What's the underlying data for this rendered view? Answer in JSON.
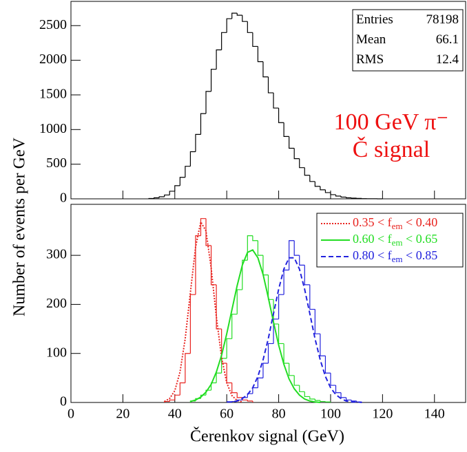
{
  "chart_data": [
    {
      "type": "histogram",
      "xlim": [
        0,
        152
      ],
      "xticks": [
        0,
        20,
        40,
        60,
        80,
        100,
        120,
        140
      ],
      "xticklabels": false,
      "ylim": [
        0,
        2850
      ],
      "yticks": [
        0,
        500,
        1000,
        1500,
        2000,
        2500
      ],
      "series": [
        {
          "type": "histogram",
          "color": "#000000",
          "bins": [
            30,
            32,
            34,
            36,
            38,
            40,
            42,
            44,
            46,
            48,
            50,
            52,
            54,
            56,
            58,
            60,
            62,
            64,
            66,
            68,
            70,
            72,
            74,
            76,
            78,
            80,
            82,
            84,
            86,
            88,
            90,
            92,
            94,
            96,
            98,
            100,
            102,
            104,
            106,
            108,
            110,
            112,
            114,
            116,
            118,
            120
          ],
          "values": [
            5,
            15,
            30,
            55,
            110,
            190,
            310,
            470,
            680,
            930,
            1230,
            1550,
            1870,
            2150,
            2400,
            2600,
            2680,
            2650,
            2560,
            2400,
            2200,
            1980,
            1760,
            1530,
            1310,
            1100,
            900,
            730,
            580,
            450,
            340,
            250,
            180,
            130,
            90,
            60,
            40,
            25,
            15,
            10,
            6,
            3,
            2,
            1,
            0
          ]
        }
      ],
      "stats": [
        {
          "label": "Entries",
          "value": 78198
        },
        {
          "label": "Mean",
          "value": 66.1
        },
        {
          "label": "RMS",
          "value": 12.4
        }
      ],
      "annotations": [
        {
          "text": "100 GeV π⁻",
          "color": "#ee1111"
        },
        {
          "text": "Č signal",
          "color": "#ee1111"
        }
      ]
    },
    {
      "type": "histogram",
      "x_label": "Čerenkov signal (GeV)",
      "y_label": "Number of events per GeV",
      "xlim": [
        0,
        152
      ],
      "xticks": [
        0,
        20,
        40,
        60,
        80,
        100,
        120,
        140
      ],
      "xticklabels": true,
      "ylim": [
        0,
        404
      ],
      "yticks": [
        0,
        100,
        200,
        300
      ],
      "legend": "upper right",
      "series": [
        {
          "type": "histogram",
          "color": "#e8221e",
          "bins": [
            36,
            38,
            40,
            42,
            44,
            46,
            48,
            50,
            52,
            54,
            56,
            58,
            60,
            62,
            64,
            66,
            68,
            70
          ],
          "values": [
            2,
            5,
            15,
            40,
            100,
            220,
            340,
            375,
            320,
            240,
            150,
            80,
            40,
            20,
            10,
            5,
            3
          ]
        },
        {
          "type": "histogram",
          "color": "#22dd22",
          "bins": [
            46,
            48,
            50,
            52,
            54,
            56,
            58,
            60,
            62,
            64,
            66,
            68,
            70,
            72,
            74,
            76,
            78,
            80,
            82,
            84,
            86,
            88,
            90,
            92,
            94,
            96,
            98,
            100
          ],
          "values": [
            3,
            8,
            15,
            25,
            40,
            60,
            90,
            130,
            180,
            230,
            290,
            340,
            330,
            300,
            260,
            210,
            160,
            120,
            80,
            55,
            35,
            22,
            12,
            7,
            4,
            2,
            1
          ]
        },
        {
          "type": "histogram",
          "color": "#2222dd",
          "bins": [
            62,
            64,
            66,
            68,
            70,
            72,
            74,
            76,
            78,
            80,
            82,
            84,
            86,
            88,
            90,
            92,
            94,
            96,
            98,
            100,
            102,
            104,
            106,
            108,
            110,
            112
          ],
          "values": [
            2,
            5,
            10,
            18,
            30,
            50,
            80,
            120,
            170,
            220,
            270,
            330,
            300,
            280,
            240,
            190,
            140,
            95,
            60,
            35,
            20,
            10,
            5,
            3,
            1
          ]
        },
        {
          "type": "line",
          "name": "0.35 < fem < 0.40",
          "color": "#e8221e",
          "dash": "dotted",
          "x": [
            36,
            38,
            40,
            42,
            44,
            46,
            48,
            50,
            52,
            54,
            56,
            58,
            60,
            62,
            64,
            66
          ],
          "values": [
            2,
            8,
            24,
            62,
            130,
            224,
            317,
            368,
            350,
            274,
            175,
            92,
            40,
            14,
            4,
            1
          ]
        },
        {
          "type": "line",
          "name": "0.60 < fem < 0.65",
          "color": "#22dd22",
          "dash": "solid",
          "x": [
            46,
            48,
            50,
            52,
            54,
            56,
            58,
            60,
            62,
            64,
            66,
            68,
            70,
            72,
            74,
            76,
            78,
            80,
            82,
            84,
            86,
            88,
            90,
            92,
            94,
            96
          ],
          "values": [
            2,
            5,
            11,
            21,
            37,
            62,
            96,
            140,
            189,
            238,
            280,
            306,
            311,
            295,
            261,
            214,
            164,
            117,
            78,
            48,
            28,
            15,
            7,
            3,
            1,
            0
          ]
        },
        {
          "type": "line",
          "name": "0.80 < fem < 0.85",
          "color": "#2222dd",
          "dash": "dashed",
          "x": [
            60,
            62,
            64,
            66,
            68,
            70,
            72,
            74,
            76,
            78,
            80,
            82,
            84,
            86,
            88,
            90,
            92,
            94,
            96,
            98,
            100,
            102,
            104,
            106,
            108,
            110,
            112
          ],
          "values": [
            1,
            1,
            3,
            8,
            16,
            30,
            53,
            87,
            130,
            181,
            231,
            272,
            295,
            295,
            272,
            231,
            181,
            130,
            87,
            53,
            30,
            16,
            8,
            3,
            1,
            1,
            0
          ]
        }
      ]
    }
  ]
}
